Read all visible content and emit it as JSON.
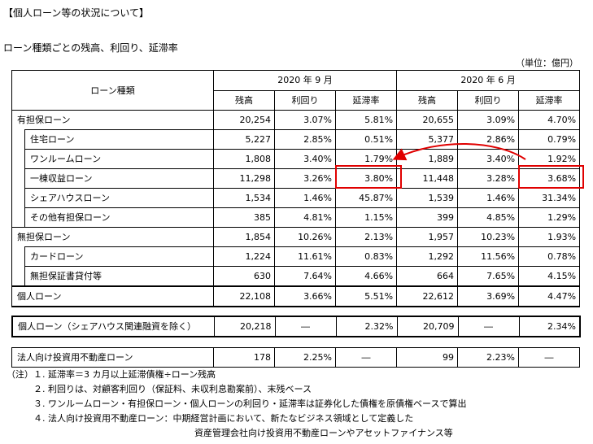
{
  "title": "【個人ローン等の状況について】",
  "subtitle": "ローン種類ごとの残高、利回り、延滞率",
  "unit": "（単位：億円）",
  "header": {
    "type": "ローン種類",
    "p1": "2020 年 9 月",
    "p2": "2020 年 6 月",
    "cols": [
      "残高",
      "利回り",
      "延滞率",
      "残高",
      "利回り",
      "延滞率"
    ]
  },
  "rows": [
    {
      "label": "有担保ローン",
      "indent": false,
      "vals": [
        "20,254",
        "3.07%",
        "5.81%",
        "20,655",
        "3.09%",
        "4.70%"
      ]
    },
    {
      "label": "住宅ローン",
      "indent": true,
      "vals": [
        "5,227",
        "2.85%",
        "0.51%",
        "5,377",
        "2.86%",
        "0.79%"
      ]
    },
    {
      "label": "ワンルームローン",
      "indent": true,
      "vals": [
        "1,808",
        "3.40%",
        "1.79%",
        "1,889",
        "3.40%",
        "1.92%"
      ]
    },
    {
      "label": "一棟収益ローン",
      "indent": true,
      "vals": [
        "11,298",
        "3.26%",
        "3.80%",
        "11,448",
        "3.28%",
        "3.68%"
      ]
    },
    {
      "label": "シェアハウスローン",
      "indent": true,
      "vals": [
        "1,534",
        "1.46%",
        "45.87%",
        "1,539",
        "1.46%",
        "31.34%"
      ]
    },
    {
      "label": "その他有担保ローン",
      "indent": true,
      "vals": [
        "385",
        "4.81%",
        "1.15%",
        "399",
        "4.85%",
        "1.29%"
      ]
    },
    {
      "label": "無担保ローン",
      "indent": false,
      "vals": [
        "1,854",
        "10.26%",
        "2.13%",
        "1,957",
        "10.23%",
        "1.93%"
      ]
    },
    {
      "label": "カードローン",
      "indent": true,
      "vals": [
        "1,224",
        "11.61%",
        "0.83%",
        "1,292",
        "11.56%",
        "0.78%"
      ]
    },
    {
      "label": "無担保証書貸付等",
      "indent": true,
      "vals": [
        "630",
        "7.64%",
        "4.66%",
        "664",
        "7.65%",
        "4.15%"
      ]
    }
  ],
  "total": {
    "label": "個人ローン",
    "vals": [
      "22,108",
      "3.66%",
      "5.51%",
      "22,612",
      "3.69%",
      "4.47%"
    ]
  },
  "excl": {
    "label": "個人ローン（シェアハウス関連融資を除く）",
    "vals": [
      "20,218",
      "―",
      "2.32%",
      "20,709",
      "―",
      "2.34%"
    ]
  },
  "corp": {
    "label": "法人向け投資用不動産ローン",
    "vals": [
      "178",
      "2.25%",
      "―",
      "99",
      "2.23%",
      "―"
    ]
  },
  "notes": [
    "（注）１. 延滞率＝3 カ月以上延滞債権÷ローン残高",
    "　　　２. 利回りは、対顧客利回り（保証料、未収利息勘案前）、末残ベース",
    "　　　３. ワンルームローン・有担保ローン・個人ローンの利回り・延滞率は証券化した債権を原債権ベースで算出",
    "　　　４. 法人向け投資用不動産ローン：中期経営計画において、新たなビジネス領域として定義した",
    "　　　　　　　　　　　　　　　　　　　　　資産管理会社向け投資用不動産ローンやアセットファイナンス等"
  ],
  "highlight_color": "#e00000"
}
